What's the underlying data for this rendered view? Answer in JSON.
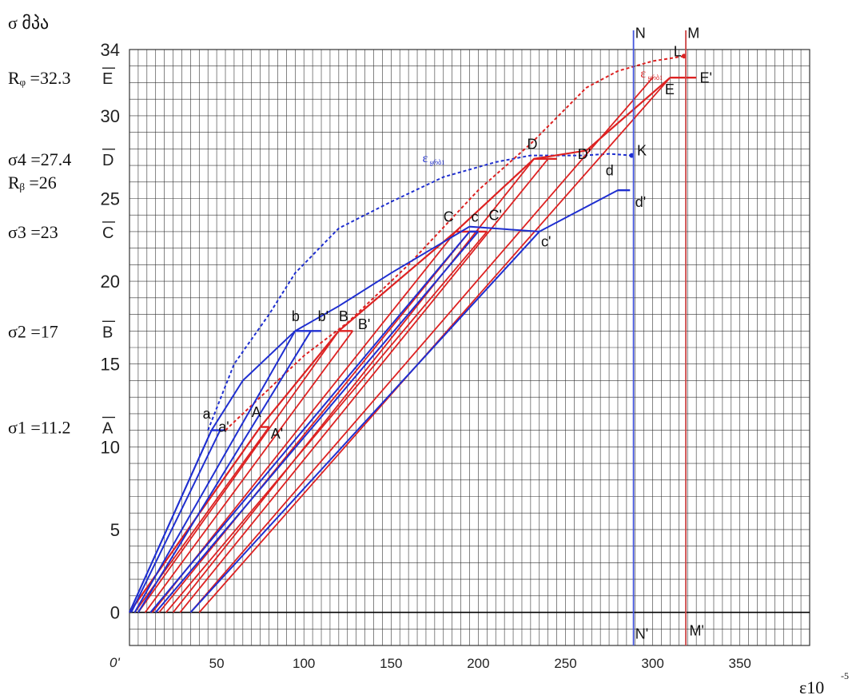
{
  "chart_data": {
    "type": "line",
    "title": "",
    "ylabel": "σ მპა",
    "xlabel_base": "ε10",
    "xlabel_exp": "-5",
    "origin_label": "0'",
    "xlim": [
      0,
      390
    ],
    "ylim": [
      -2,
      34
    ],
    "x_ticks": [
      50,
      100,
      150,
      200,
      250,
      300,
      350
    ],
    "y_ticks": [
      0,
      5,
      10,
      15,
      20,
      25,
      30,
      34
    ],
    "grid": true,
    "stress_labels": [
      {
        "text": "Rᵩ =32.3",
        "y": 32.3
      },
      {
        "text": "σ4 =27.4",
        "y": 27.4
      },
      {
        "text": "Rᵦ =26",
        "y": 26
      },
      {
        "text": "σ3 =23",
        "y": 23
      },
      {
        "text": "σ2 =17",
        "y": 17
      },
      {
        "text": "σ1 =11.2",
        "y": 11.2
      }
    ],
    "level_labels": [
      {
        "text": "E",
        "y": 32.3
      },
      {
        "text": "D",
        "y": 27.4
      },
      {
        "text": "C",
        "y": 23
      },
      {
        "text": "B",
        "y": 17
      },
      {
        "text": "A",
        "y": 11.2
      }
    ],
    "blue_envelope": [
      [
        0,
        0
      ],
      [
        47,
        11
      ],
      [
        65,
        14
      ],
      [
        95,
        17
      ],
      [
        120,
        18.5
      ],
      [
        150,
        20.5
      ],
      [
        195,
        23.3
      ],
      [
        235,
        23
      ],
      [
        280,
        25.5
      ],
      [
        287,
        25.5
      ]
    ],
    "blue_loading": [
      [
        [
          0,
          0
        ],
        [
          47,
          11
        ]
      ],
      [
        [
          1,
          0
        ],
        [
          52,
          11
        ]
      ],
      [
        [
          3,
          0
        ],
        [
          95,
          17
        ]
      ],
      [
        [
          5,
          0
        ],
        [
          104,
          17
        ]
      ],
      [
        [
          12,
          0
        ],
        [
          195,
          23
        ]
      ],
      [
        [
          15,
          0
        ],
        [
          200,
          23
        ]
      ],
      [
        [
          35,
          0
        ],
        [
          235,
          23
        ]
      ]
    ],
    "blue_plateaus": [
      [
        [
          47,
          11
        ],
        [
          55,
          11
        ]
      ],
      [
        [
          95,
          17
        ],
        [
          110,
          17
        ]
      ],
      [
        [
          195,
          23
        ],
        [
          200,
          23
        ]
      ],
      [
        [
          235,
          23
        ],
        [
          235,
          23
        ]
      ],
      [
        [
          280,
          25.5
        ],
        [
          287,
          25.5
        ]
      ]
    ],
    "blue_curve": [
      [
        45,
        11
      ],
      [
        60,
        15
      ],
      [
        80,
        18
      ],
      [
        95,
        20.5
      ],
      [
        120,
        23.2
      ],
      [
        150,
        24.8
      ],
      [
        180,
        26.3
      ],
      [
        210,
        27.2
      ],
      [
        230,
        27.6
      ],
      [
        260,
        27.6
      ],
      [
        275,
        27.7
      ],
      [
        288,
        27.6
      ]
    ],
    "red_curve": [
      [
        55,
        11
      ],
      [
        80,
        13.5
      ],
      [
        100,
        15.5
      ],
      [
        125,
        17.5
      ],
      [
        160,
        21
      ],
      [
        200,
        25.5
      ],
      [
        230,
        28.3
      ],
      [
        262,
        31.7
      ],
      [
        280,
        32.7
      ],
      [
        300,
        33.3
      ],
      [
        318,
        33.6
      ]
    ],
    "red_loading": [
      [
        [
          0,
          0
        ],
        [
          75,
          11.2
        ]
      ],
      [
        [
          3,
          0
        ],
        [
          80,
          11.2
        ]
      ],
      [
        [
          5,
          0
        ],
        [
          120,
          17
        ]
      ],
      [
        [
          9,
          0
        ],
        [
          128,
          17
        ]
      ],
      [
        [
          13,
          0
        ],
        [
          187,
          23
        ]
      ],
      [
        [
          17,
          0
        ],
        [
          195,
          23
        ]
      ],
      [
        [
          21,
          0
        ],
        [
          205,
          23
        ]
      ],
      [
        [
          25,
          0
        ],
        [
          232,
          27.4
        ]
      ],
      [
        [
          29,
          0
        ],
        [
          240,
          27.4
        ]
      ],
      [
        [
          35,
          0
        ],
        [
          300,
          32.3
        ]
      ],
      [
        [
          40,
          0
        ],
        [
          310,
          32.3
        ]
      ]
    ],
    "red_plateaus": [
      [
        [
          75,
          11.2
        ],
        [
          80,
          11.2
        ]
      ],
      [
        [
          120,
          17
        ],
        [
          128,
          17
        ]
      ],
      [
        [
          187,
          23
        ],
        [
          205,
          23
        ]
      ],
      [
        [
          232,
          27.4
        ],
        [
          245,
          27.4
        ]
      ],
      [
        [
          310,
          32.3
        ],
        [
          325,
          32.3
        ]
      ]
    ],
    "red_envelope": [
      [
        0,
        0
      ],
      [
        75,
        11.2
      ],
      [
        120,
        17
      ],
      [
        187,
        23
      ],
      [
        232,
        27.4
      ],
      [
        262,
        27.9
      ],
      [
        310,
        32.3
      ]
    ],
    "vline_N": 289,
    "vline_M": 319,
    "point_labels": [
      {
        "text": "a",
        "x": 42,
        "y": 11.7,
        "color": "#000"
      },
      {
        "text": "a'",
        "x": 51,
        "y": 10.9,
        "color": "#000"
      },
      {
        "text": "A",
        "x": 70,
        "y": 11.8,
        "color": "#000"
      },
      {
        "text": "A'",
        "x": 81,
        "y": 10.5,
        "color": "#000"
      },
      {
        "text": "b",
        "x": 93,
        "y": 17.6,
        "color": "#000"
      },
      {
        "text": "b'",
        "x": 108,
        "y": 17.6,
        "color": "#000"
      },
      {
        "text": "B",
        "x": 120,
        "y": 17.6,
        "color": "#000"
      },
      {
        "text": "B'",
        "x": 131,
        "y": 17.1,
        "color": "#000"
      },
      {
        "text": "C",
        "x": 180,
        "y": 23.6,
        "color": "#000"
      },
      {
        "text": "c",
        "x": 196,
        "y": 23.6,
        "color": "#000"
      },
      {
        "text": "C'",
        "x": 206,
        "y": 23.7,
        "color": "#000"
      },
      {
        "text": "c'",
        "x": 236,
        "y": 22.1,
        "color": "#000"
      },
      {
        "text": "D",
        "x": 228,
        "y": 28,
        "color": "#000"
      },
      {
        "text": "D'",
        "x": 257,
        "y": 27.4,
        "color": "#000"
      },
      {
        "text": "d",
        "x": 273,
        "y": 26.4,
        "color": "#000"
      },
      {
        "text": "d'",
        "x": 290,
        "y": 24.5,
        "color": "#000"
      },
      {
        "text": "K",
        "x": 291,
        "y": 27.6,
        "color": "#000"
      },
      {
        "text": "N",
        "x": 290,
        "y": 34.7,
        "color": "#000"
      },
      {
        "text": "M",
        "x": 320,
        "y": 34.7,
        "color": "#000"
      },
      {
        "text": "L",
        "x": 312,
        "y": 33.6,
        "color": "#000"
      },
      {
        "text": "E",
        "x": 307,
        "y": 31.3,
        "color": "#000"
      },
      {
        "text": "E'",
        "x": 327,
        "y": 32,
        "color": "#000"
      },
      {
        "text": "N'",
        "x": 290,
        "y": -1.6,
        "color": "#000"
      },
      {
        "text": "M'",
        "x": 321,
        "y": -1.4,
        "color": "#000"
      }
    ],
    "curve_labels": [
      {
        "text": "ε",
        "sub": "ყრბ1",
        "x": 168,
        "y": 27.2,
        "color": "#1f2fd0"
      },
      {
        "text": "ε",
        "sub": "ყრბ1",
        "x": 293,
        "y": 32.3,
        "color": "#dd2222"
      }
    ],
    "colors": {
      "blue": "#1f2fd0",
      "red": "#dd2222",
      "grid": "#333333",
      "blue_vline": "#4455dd",
      "red_vline": "#cc4444"
    }
  }
}
